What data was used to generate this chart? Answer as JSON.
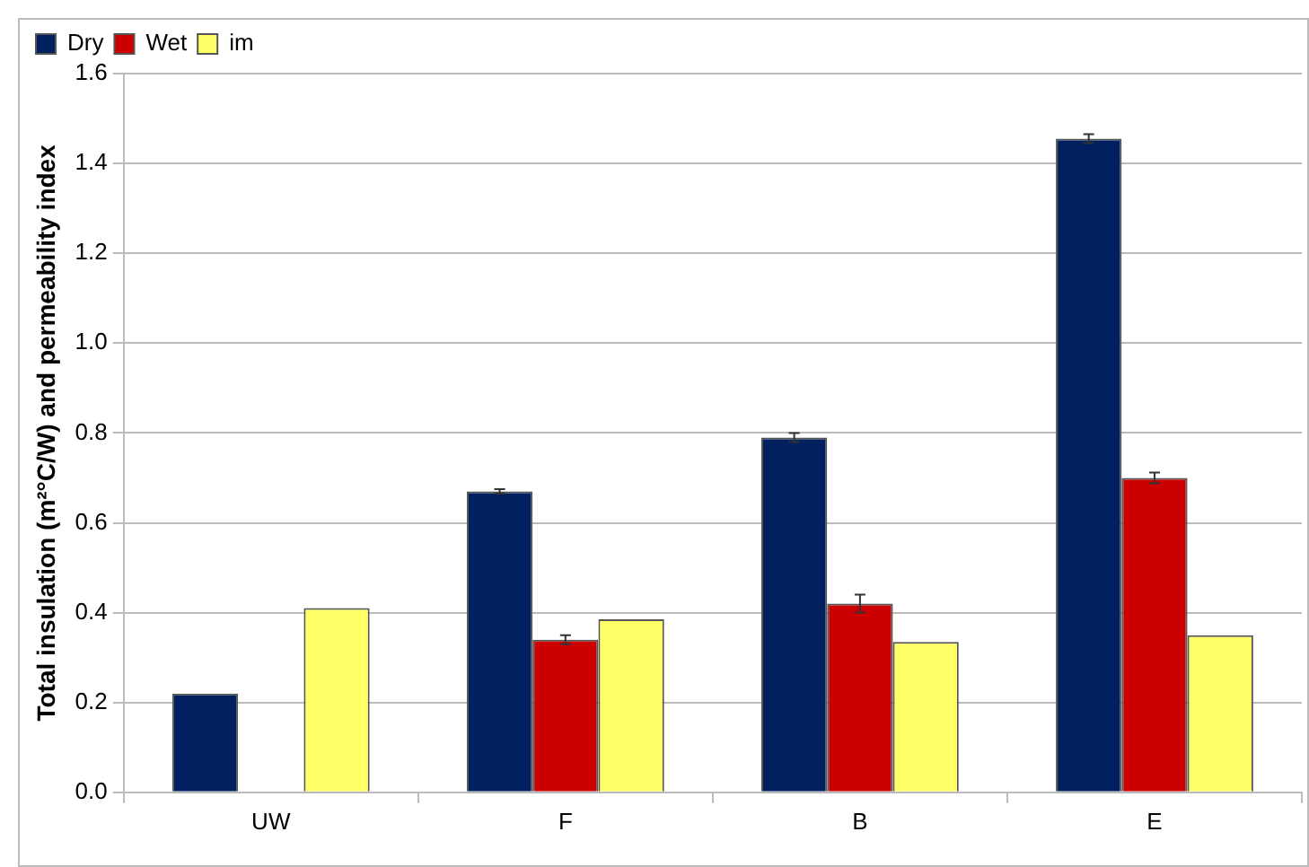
{
  "chart_data": {
    "type": "bar",
    "ylabel": "Total insulation (m²°C/W) and permeability index",
    "categories": [
      "UW",
      "F",
      "B",
      "E"
    ],
    "series": [
      {
        "name": "Dry",
        "color": "#002060",
        "values": [
          0.22,
          0.67,
          0.79,
          1.455
        ],
        "errors": [
          null,
          0.005,
          0.01,
          0.01
        ]
      },
      {
        "name": "Wet",
        "color": "#cc0000",
        "values": [
          null,
          0.34,
          0.42,
          0.7
        ],
        "errors": [
          null,
          0.01,
          0.02,
          0.012
        ]
      },
      {
        "name": "im",
        "color": "#ffff66",
        "values": [
          0.41,
          0.385,
          0.335,
          0.35
        ]
      }
    ],
    "ylim": [
      0,
      1.6
    ],
    "yticks": [
      {
        "value": 0,
        "label": "0.0"
      },
      {
        "value": 0.2,
        "label": "0.2"
      },
      {
        "value": 0.4,
        "label": "0.4"
      },
      {
        "value": 0.6,
        "label": "0.6"
      },
      {
        "value": 0.8,
        "label": "0.8"
      },
      {
        "value": 1,
        "label": "1.0"
      },
      {
        "value": 1.2,
        "label": "1.2"
      },
      {
        "value": 1.4,
        "label": "1.4"
      },
      {
        "value": 1.6,
        "label": "1.6"
      }
    ],
    "grid": "y",
    "legend": "top left"
  }
}
